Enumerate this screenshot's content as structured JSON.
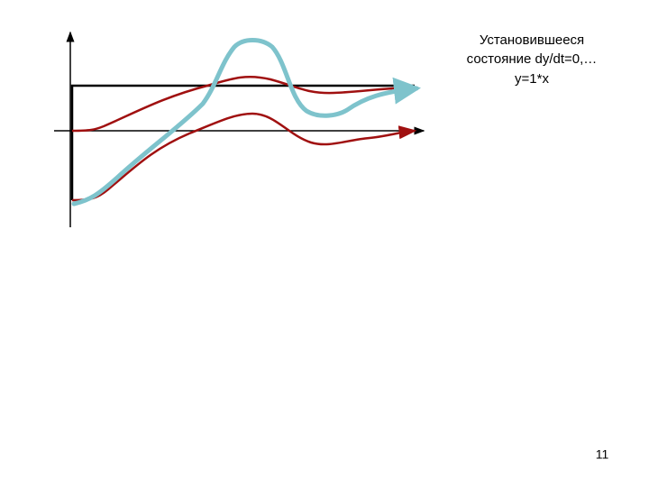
{
  "caption": {
    "lines": [
      "Установившееся",
      "состояние dy/dt=0,…",
      "y=1*x"
    ]
  },
  "page_number": "11"
}
